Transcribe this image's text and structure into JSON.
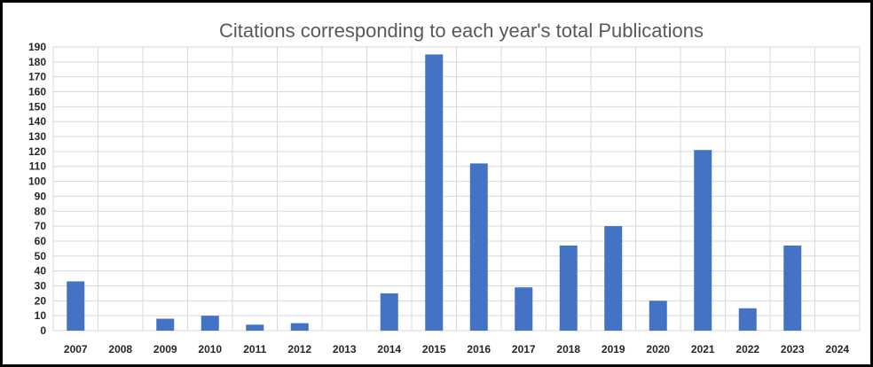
{
  "chart_data": {
    "type": "bar",
    "title": "Citations corresponding to each year's total Publications",
    "xlabel": "",
    "ylabel": "",
    "categories": [
      "2007",
      "2008",
      "2009",
      "2010",
      "2011",
      "2012",
      "2013",
      "2014",
      "2015",
      "2016",
      "2017",
      "2018",
      "2019",
      "2020",
      "2021",
      "2022",
      "2023",
      "2024"
    ],
    "values": [
      33,
      0,
      8,
      10,
      4,
      5,
      0,
      25,
      185,
      112,
      29,
      57,
      70,
      20,
      121,
      15,
      57,
      0
    ],
    "ylim": [
      0,
      190
    ],
    "yticks": [
      0,
      10,
      20,
      30,
      40,
      50,
      60,
      70,
      80,
      90,
      100,
      110,
      120,
      130,
      140,
      150,
      160,
      170,
      180,
      190
    ],
    "grid": true,
    "bar_color": "#4472C4"
  }
}
